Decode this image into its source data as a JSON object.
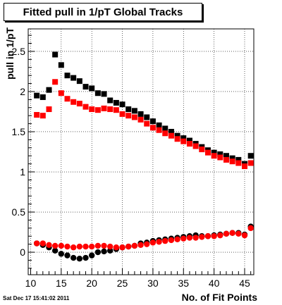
{
  "chart_data": {
    "type": "scatter",
    "title": "Fitted pull in 1/pT  Global Tracks",
    "xlabel": "No. of Fit Points",
    "ylabel": "pull in 1/pT",
    "xlim": [
      9.6,
      46.5
    ],
    "ylim": [
      -0.28,
      2.78
    ],
    "xticks": [
      10,
      15,
      20,
      25,
      30,
      35,
      40,
      45
    ],
    "yticks": [
      0,
      0.5,
      1,
      1.5,
      2,
      2.5
    ],
    "tick_labels_x": [
      "10",
      "15",
      "20",
      "25",
      "30",
      "35",
      "40",
      "45"
    ],
    "tick_labels_y": [
      "0",
      "0.5",
      "1",
      "1.5",
      "2",
      "2.5"
    ],
    "grid": true,
    "series": [
      {
        "color": "#000000",
        "marker": "square",
        "x": [
          11,
          12,
          13,
          14,
          15,
          16,
          17,
          18,
          19,
          20,
          21,
          22,
          23,
          24,
          25,
          26,
          27,
          28,
          29,
          30,
          31,
          32,
          33,
          34,
          35,
          36,
          37,
          38,
          39,
          40,
          41,
          42,
          43,
          44,
          45,
          46
        ],
        "values": [
          1.95,
          1.93,
          2.02,
          2.46,
          2.33,
          2.2,
          2.17,
          2.13,
          2.06,
          2.04,
          1.98,
          1.97,
          1.89,
          1.86,
          1.84,
          1.78,
          1.76,
          1.72,
          1.68,
          1.63,
          1.58,
          1.54,
          1.5,
          1.45,
          1.42,
          1.39,
          1.35,
          1.31,
          1.27,
          1.24,
          1.22,
          1.2,
          1.17,
          1.15,
          1.1,
          1.2
        ]
      },
      {
        "color": "#ff0000",
        "marker": "square",
        "x": [
          11,
          12,
          13,
          14,
          15,
          16,
          17,
          18,
          19,
          20,
          21,
          22,
          23,
          24,
          25,
          26,
          27,
          28,
          29,
          30,
          31,
          32,
          33,
          34,
          35,
          36,
          37,
          38,
          39,
          40,
          41,
          42,
          43,
          44,
          45,
          46
        ],
        "values": [
          1.71,
          1.7,
          1.78,
          2.12,
          1.98,
          1.91,
          1.87,
          1.85,
          1.81,
          1.78,
          1.77,
          1.79,
          1.78,
          1.77,
          1.72,
          1.7,
          1.68,
          1.65,
          1.6,
          1.55,
          1.52,
          1.48,
          1.45,
          1.41,
          1.38,
          1.35,
          1.32,
          1.28,
          1.24,
          1.2,
          1.18,
          1.15,
          1.13,
          1.11,
          1.07,
          1.11
        ]
      },
      {
        "color": "#000000",
        "marker": "circle",
        "x": [
          11,
          12,
          13,
          14,
          15,
          16,
          17,
          18,
          19,
          20,
          21,
          22,
          23,
          24,
          25,
          26,
          27,
          28,
          29,
          30,
          31,
          32,
          33,
          34,
          35,
          36,
          37,
          38,
          39,
          40,
          41,
          42,
          43,
          44,
          45,
          46
        ],
        "values": [
          0.11,
          0.09,
          0.06,
          0.02,
          -0.02,
          -0.04,
          -0.07,
          -0.08,
          -0.07,
          -0.04,
          0.0,
          0.01,
          0.02,
          0.04,
          0.06,
          0.07,
          0.08,
          0.11,
          0.12,
          0.14,
          0.15,
          0.16,
          0.17,
          0.18,
          0.19,
          0.2,
          0.21,
          0.2,
          0.2,
          0.21,
          0.22,
          0.23,
          0.24,
          0.24,
          0.22,
          0.32
        ]
      },
      {
        "color": "#ff0000",
        "marker": "circle",
        "x": [
          11,
          12,
          13,
          14,
          15,
          16,
          17,
          18,
          19,
          20,
          21,
          22,
          23,
          24,
          25,
          26,
          27,
          28,
          29,
          30,
          31,
          32,
          33,
          34,
          35,
          36,
          37,
          38,
          39,
          40,
          41,
          42,
          43,
          44,
          45,
          46
        ],
        "values": [
          0.11,
          0.11,
          0.09,
          0.08,
          0.08,
          0.07,
          0.06,
          0.07,
          0.07,
          0.07,
          0.08,
          0.08,
          0.07,
          0.06,
          0.06,
          0.07,
          0.08,
          0.09,
          0.1,
          0.12,
          0.13,
          0.14,
          0.15,
          0.16,
          0.17,
          0.18,
          0.18,
          0.19,
          0.2,
          0.2,
          0.21,
          0.23,
          0.24,
          0.23,
          0.21,
          0.3
        ]
      }
    ]
  },
  "footer": "Sat Dec 17 15:41:02 2011"
}
